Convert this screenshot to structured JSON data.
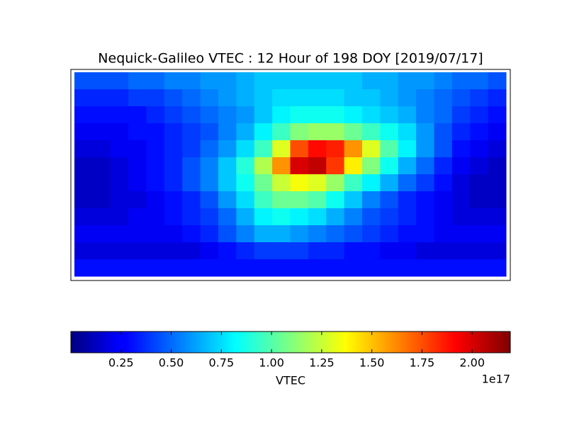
{
  "chart_data": {
    "type": "heatmap",
    "title": "Nequick-Galileo VTEC : 12 Hour of 198 DOY [2019/07/17]",
    "values": [
      [
        0.45,
        0.45,
        0.45,
        0.5,
        0.5,
        0.55,
        0.55,
        0.6,
        0.6,
        0.65,
        0.7,
        0.7,
        0.7,
        0.7,
        0.7,
        0.7,
        0.65,
        0.65,
        0.6,
        0.6,
        0.55,
        0.5,
        0.5,
        0.45
      ],
      [
        0.35,
        0.35,
        0.35,
        0.4,
        0.4,
        0.45,
        0.5,
        0.55,
        0.6,
        0.65,
        0.7,
        0.75,
        0.75,
        0.75,
        0.75,
        0.7,
        0.7,
        0.65,
        0.6,
        0.55,
        0.5,
        0.45,
        0.4,
        0.35
      ],
      [
        0.3,
        0.3,
        0.3,
        0.3,
        0.35,
        0.4,
        0.45,
        0.5,
        0.55,
        0.6,
        0.7,
        0.8,
        0.85,
        0.85,
        0.85,
        0.8,
        0.75,
        0.7,
        0.65,
        0.55,
        0.5,
        0.4,
        0.35,
        0.3
      ],
      [
        0.25,
        0.25,
        0.25,
        0.3,
        0.3,
        0.35,
        0.4,
        0.45,
        0.55,
        0.65,
        0.8,
        0.95,
        1.1,
        1.15,
        1.15,
        1.05,
        0.95,
        0.85,
        0.75,
        0.6,
        0.45,
        0.35,
        0.3,
        0.25
      ],
      [
        0.2,
        0.2,
        0.25,
        0.25,
        0.3,
        0.35,
        0.4,
        0.5,
        0.6,
        0.75,
        0.95,
        1.3,
        1.75,
        1.9,
        1.85,
        1.6,
        1.3,
        1.0,
        0.8,
        0.6,
        0.45,
        0.3,
        0.25,
        0.2
      ],
      [
        0.15,
        0.15,
        0.2,
        0.25,
        0.3,
        0.35,
        0.45,
        0.55,
        0.7,
        0.9,
        1.2,
        1.6,
        2.0,
        2.05,
        1.8,
        1.4,
        1.1,
        0.85,
        0.65,
        0.5,
        0.35,
        0.25,
        0.2,
        0.15
      ],
      [
        0.15,
        0.15,
        0.2,
        0.25,
        0.3,
        0.35,
        0.45,
        0.55,
        0.7,
        0.85,
        1.05,
        1.25,
        1.35,
        1.3,
        1.15,
        0.95,
        0.8,
        0.65,
        0.5,
        0.4,
        0.3,
        0.2,
        0.15,
        0.15
      ],
      [
        0.15,
        0.15,
        0.2,
        0.2,
        0.25,
        0.3,
        0.35,
        0.45,
        0.6,
        0.75,
        0.95,
        1.05,
        1.05,
        1.0,
        0.85,
        0.7,
        0.55,
        0.45,
        0.35,
        0.3,
        0.25,
        0.2,
        0.15,
        0.15
      ],
      [
        0.2,
        0.2,
        0.2,
        0.25,
        0.25,
        0.3,
        0.35,
        0.4,
        0.5,
        0.65,
        0.8,
        0.85,
        0.8,
        0.75,
        0.65,
        0.55,
        0.45,
        0.4,
        0.35,
        0.3,
        0.25,
        0.2,
        0.2,
        0.2
      ],
      [
        0.25,
        0.25,
        0.25,
        0.25,
        0.25,
        0.25,
        0.3,
        0.35,
        0.45,
        0.55,
        0.65,
        0.65,
        0.6,
        0.55,
        0.5,
        0.45,
        0.4,
        0.35,
        0.3,
        0.3,
        0.25,
        0.25,
        0.25,
        0.25
      ],
      [
        0.2,
        0.2,
        0.2,
        0.2,
        0.2,
        0.2,
        0.2,
        0.25,
        0.3,
        0.35,
        0.4,
        0.4,
        0.4,
        0.35,
        0.35,
        0.3,
        0.3,
        0.25,
        0.25,
        0.2,
        0.2,
        0.2,
        0.2,
        0.2
      ],
      [
        0.3,
        0.3,
        0.3,
        0.3,
        0.3,
        0.3,
        0.3,
        0.3,
        0.3,
        0.3,
        0.3,
        0.3,
        0.3,
        0.3,
        0.3,
        0.3,
        0.3,
        0.3,
        0.3,
        0.3,
        0.3,
        0.3,
        0.3,
        0.3
      ]
    ],
    "colorbar": {
      "label": "VTEC",
      "offset": "1e17",
      "clim": [
        0,
        2.19
      ],
      "ticks": [
        0.25,
        {
          "value": 0.5,
          "label": "0.50"
        },
        0.75,
        {
          "value": 1,
          "label": "1.00"
        },
        1.25,
        {
          "value": 1.5,
          "label": "1.50"
        },
        1.75,
        {
          "value": 2,
          "label": "2.00"
        }
      ]
    }
  }
}
